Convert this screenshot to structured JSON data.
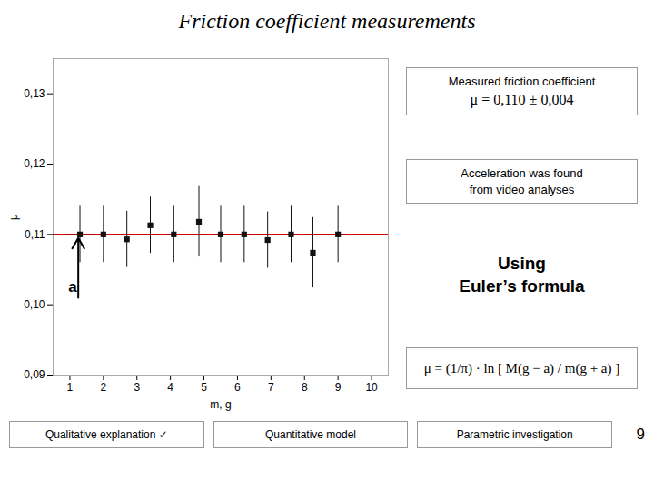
{
  "chart_data": {
    "type": "scatter",
    "title": "Friction coefficient measurements",
    "x": [
      1.3,
      2.0,
      2.7,
      3.4,
      4.1,
      4.85,
      5.5,
      6.2,
      6.9,
      7.6,
      8.25,
      9.0
    ],
    "values": [
      0.11,
      0.11,
      0.1093,
      0.1113,
      0.11,
      0.1118,
      0.11,
      0.11,
      0.1092,
      0.11,
      0.1074,
      0.11
    ],
    "errors": [
      0.004,
      0.004,
      0.004,
      0.004,
      0.004,
      0.005,
      0.004,
      0.004,
      0.004,
      0.004,
      0.005,
      0.004
    ],
    "color": "#111111",
    "marker": "square",
    "mean_line": {
      "value": 0.11,
      "color": "#cc0000"
    },
    "xlabel": "m, g",
    "ylabel": "μ",
    "xlim": [
      0.5,
      10.5
    ],
    "ylim": [
      0.09,
      0.135
    ],
    "xticks": [
      1,
      2,
      3,
      4,
      5,
      6,
      7,
      8,
      9,
      10
    ],
    "yticks": [
      {
        "value": 0.09,
        "label": "0,09"
      },
      {
        "value": 0.1,
        "label": "0,10"
      },
      {
        "value": 0.11,
        "label": "0,11"
      },
      {
        "value": 0.12,
        "label": "0,12"
      },
      {
        "value": 0.13,
        "label": "0,13"
      }
    ],
    "annotations": [
      {
        "text": "a",
        "x": 1.08,
        "y": 0.1025,
        "arrow": {
          "x": 1.25,
          "y1": 0.101,
          "y2": 0.1095
        }
      },
      {
        "lines": [
          "Measured friction coefficient",
          "μ = 0,110 ± 0,004"
        ]
      },
      {
        "lines": [
          "Acceleration was found",
          "from video analyses"
        ]
      },
      {
        "lines": [
          "Using",
          "Euler’s formula"
        ]
      },
      {
        "lines": [
          "μ = (1/π) · ln [ M(g − a) / m(g + a) ]"
        ]
      },
      {
        "lines": [
          "Qualitative explanation",
          "✓"
        ]
      },
      {
        "lines": [
          "Quantitative model"
        ]
      },
      {
        "lines": [
          "Parametric investigation"
        ]
      },
      {
        "text": "9"
      }
    ]
  }
}
